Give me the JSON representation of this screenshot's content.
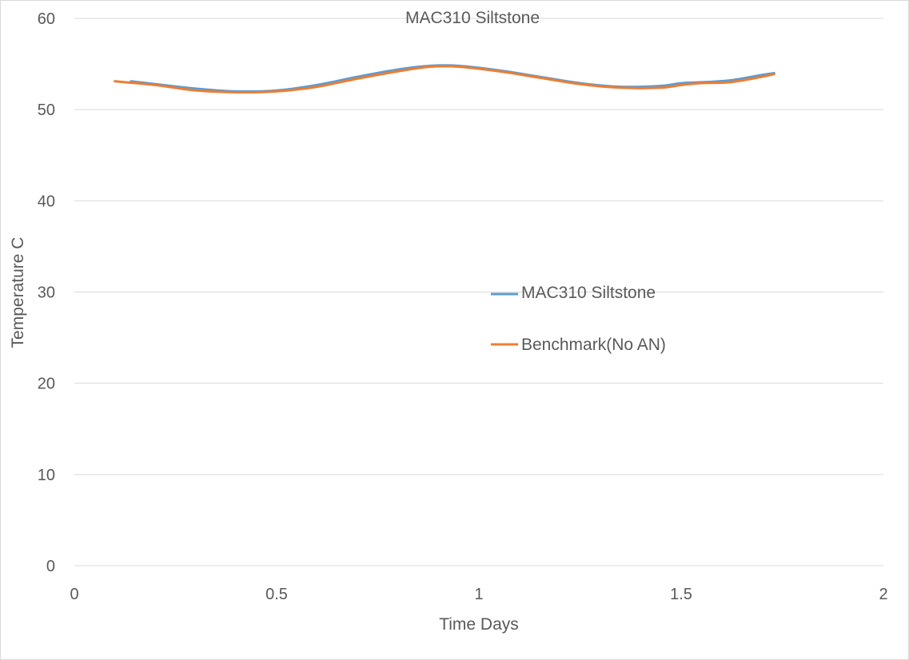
{
  "chart_data": {
    "type": "line",
    "title": "MAC310 Siltstone",
    "xlabel": "Time Days",
    "ylabel": "Temperature C",
    "xlim": [
      0,
      2
    ],
    "ylim": [
      0,
      60
    ],
    "xticks": [
      0,
      0.5,
      1,
      1.5,
      2
    ],
    "xtick_labels": [
      "0",
      "0.5",
      "1",
      "1.5",
      "2"
    ],
    "yticks": [
      0,
      10,
      20,
      30,
      40,
      50,
      60
    ],
    "ytick_labels": [
      "0",
      "10",
      "20",
      "30",
      "40",
      "50",
      "60"
    ],
    "grid": "horizontal",
    "legend_position": "center-right",
    "series": [
      {
        "name": "MAC310 Siltstone",
        "color": "#5b9bd5",
        "x": [
          0.14,
          0.2,
          0.3,
          0.4,
          0.5,
          0.6,
          0.7,
          0.8,
          0.88,
          0.95,
          1.05,
          1.15,
          1.25,
          1.35,
          1.45,
          1.5,
          1.55,
          1.62,
          1.7,
          1.73
        ],
        "y": [
          53.1,
          52.8,
          52.3,
          52.0,
          52.1,
          52.7,
          53.6,
          54.4,
          54.8,
          54.8,
          54.3,
          53.6,
          52.9,
          52.5,
          52.6,
          52.9,
          53.0,
          53.2,
          53.8,
          54.0
        ]
      },
      {
        "name": "Benchmark(No AN)",
        "color": "#ed7d31",
        "x": [
          0.1,
          0.2,
          0.3,
          0.4,
          0.5,
          0.6,
          0.7,
          0.8,
          0.88,
          0.95,
          1.05,
          1.15,
          1.25,
          1.35,
          1.45,
          1.5,
          1.55,
          1.62,
          1.7,
          1.73
        ],
        "y": [
          53.1,
          52.7,
          52.1,
          51.9,
          52.0,
          52.5,
          53.4,
          54.2,
          54.7,
          54.7,
          54.2,
          53.5,
          52.8,
          52.4,
          52.4,
          52.7,
          52.9,
          53.0,
          53.6,
          53.9
        ]
      }
    ]
  }
}
